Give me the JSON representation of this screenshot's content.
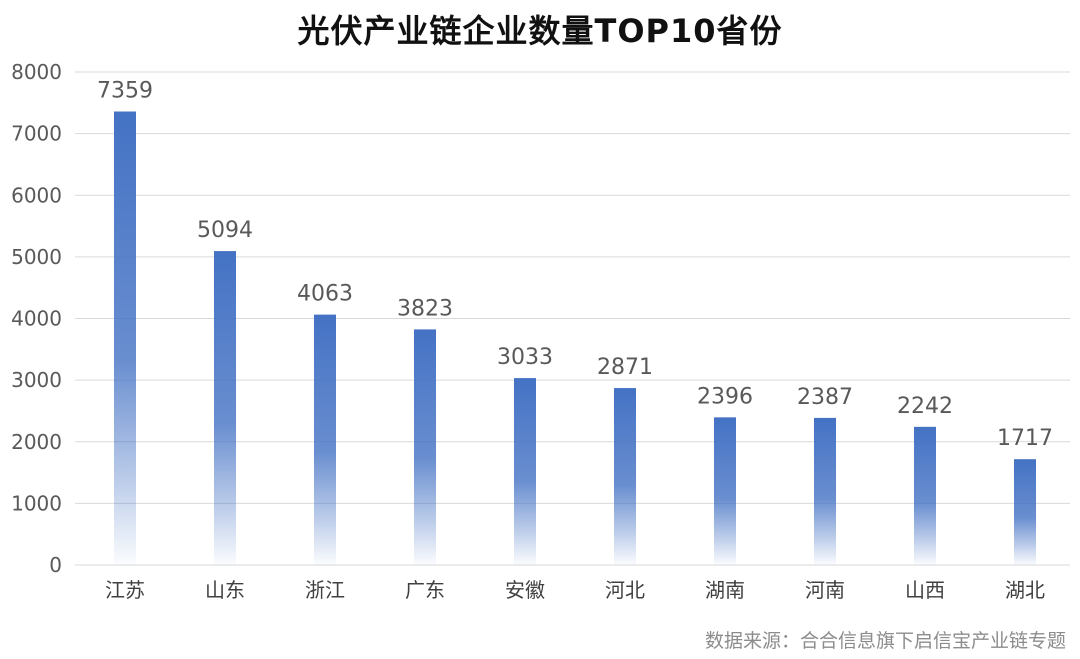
{
  "chart_data": {
    "type": "bar",
    "title": "光伏产业链企业数量TOP10省份",
    "categories": [
      "江苏",
      "山东",
      "浙江",
      "广东",
      "安徽",
      "河北",
      "湖南",
      "河南",
      "山西",
      "湖北"
    ],
    "values": [
      7359,
      5094,
      4063,
      3823,
      3033,
      2871,
      2396,
      2387,
      2242,
      1717
    ],
    "ylim": [
      0,
      8000
    ],
    "yticks": [
      0,
      1000,
      2000,
      3000,
      4000,
      5000,
      6000,
      7000,
      8000
    ],
    "grid": true,
    "legend": "none",
    "data_labels": true
  },
  "colors": {
    "bar": "#4472c4",
    "grid": "#d9d9d9"
  },
  "source": "数据来源：合合信息旗下启信宝产业链专题"
}
